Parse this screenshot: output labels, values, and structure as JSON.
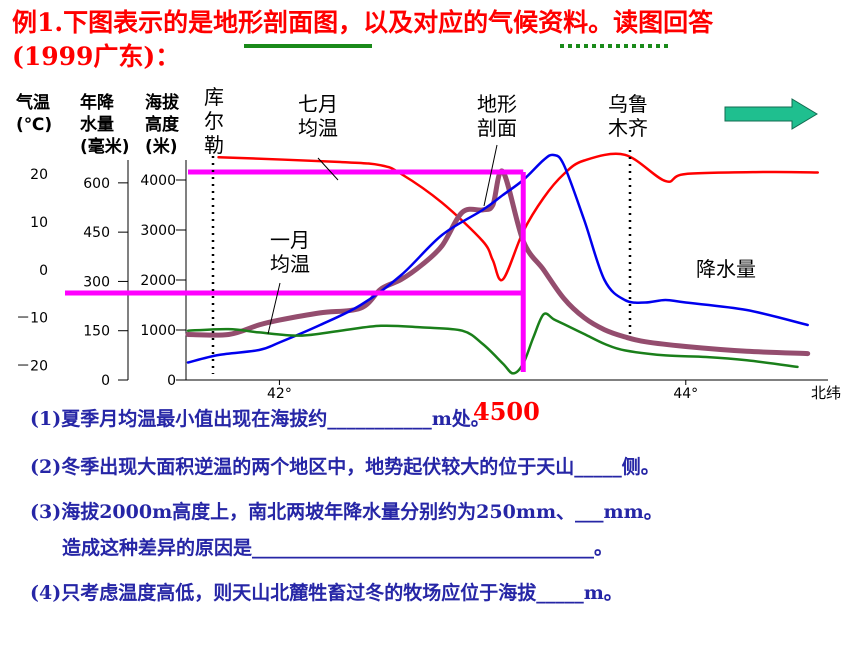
{
  "title": {
    "line1": "例1.下图表示的是地形剖面图，以及对应的气候资料。读图回答",
    "line2": "(1999广东)："
  },
  "chart_data": {
    "type": "line",
    "xlabel": "北纬",
    "xlim": [
      41.55,
      44.7
    ],
    "x_ticks": [
      {
        "value": 42,
        "label": "42°"
      },
      {
        "value": 44,
        "label": "44°"
      }
    ],
    "axes": [
      {
        "name": "temperature",
        "label": [
          "气温",
          "(℃)"
        ],
        "ticks": [
          "20",
          "10",
          "0",
          "－10",
          "－20"
        ],
        "tick_values": [
          20,
          10,
          0,
          -10,
          -20
        ],
        "range": [
          -23,
          25
        ]
      },
      {
        "name": "precipitation",
        "label": [
          "年降",
          "水量",
          "(毫米)"
        ],
        "ticks": [
          "600",
          "450",
          "300",
          "150",
          "0"
        ],
        "tick_values": [
          600,
          450,
          300,
          150,
          0
        ],
        "range": [
          0,
          700
        ]
      },
      {
        "name": "elevation",
        "label": [
          "海拔",
          "高度",
          "(米)"
        ],
        "ticks": [
          "4000",
          "3000",
          "2000",
          "1000",
          "0"
        ],
        "tick_values": [
          4000,
          3000,
          2000,
          1000,
          0
        ],
        "range": [
          0,
          4600
        ]
      }
    ],
    "annotations": [
      {
        "text": [
          "库",
          "尔",
          "勒"
        ]
      },
      {
        "text": [
          "七月",
          "均温"
        ]
      },
      {
        "text": [
          "地形",
          "剖面"
        ]
      },
      {
        "text": [
          "乌鲁",
          "木齐"
        ]
      },
      {
        "text": [
          "一月",
          "均温"
        ]
      },
      {
        "text": [
          "降水量"
        ]
      }
    ],
    "series": [
      {
        "key": "july",
        "color": "#ff0000",
        "axis": "temperature",
        "x": [
          41.7,
          42.3,
          42.5,
          42.6,
          42.8,
          43.0,
          43.05,
          43.1,
          43.2,
          43.3,
          43.4,
          43.5,
          43.7,
          43.9,
          44.0,
          44.4,
          44.65
        ],
        "y": [
          23.5,
          22.5,
          21.8,
          20,
          14,
          6,
          2,
          -2,
          8,
          15,
          20,
          22.8,
          24,
          18.5,
          20,
          20.4,
          20.3
        ]
      },
      {
        "key": "january",
        "color": "#944d6e",
        "axis": "temperature",
        "x": [
          41.55,
          41.75,
          41.9,
          42.0,
          42.2,
          42.4,
          42.5,
          42.6,
          42.7,
          42.8,
          42.9,
          43.0,
          43.05,
          43.1,
          43.2,
          43.3,
          43.4,
          43.5,
          43.6,
          43.7,
          43.8,
          44.0,
          44.3,
          44.6
        ],
        "y": [
          -13.5,
          -13.5,
          -11.5,
          -10.5,
          -9,
          -8,
          -4,
          -2,
          1,
          5,
          12,
          12.5,
          13.5,
          20.5,
          6,
          0,
          -6,
          -10,
          -12.5,
          -14,
          -15,
          -16,
          -17,
          -17.5
        ]
      },
      {
        "key": "terrain",
        "color": "#0000ee",
        "axis": "elevation",
        "x": [
          41.55,
          41.7,
          41.9,
          42.0,
          42.2,
          42.4,
          42.6,
          42.8,
          43.0,
          43.1,
          43.2,
          43.3,
          43.35,
          43.4,
          43.5,
          43.6,
          43.7,
          43.8,
          43.9,
          44.0,
          44.3,
          44.6
        ],
        "y": [
          350,
          500,
          600,
          750,
          1100,
          1500,
          2100,
          2900,
          3400,
          3700,
          4000,
          4400,
          4500,
          4300,
          3200,
          2000,
          1600,
          1550,
          1600,
          1550,
          1400,
          1100
        ]
      },
      {
        "key": "precipitation",
        "color": "#1a7f1a",
        "axis": "precipitation",
        "x": [
          41.55,
          41.75,
          41.9,
          42.1,
          42.3,
          42.5,
          42.7,
          42.9,
          43.0,
          43.1,
          43.15,
          43.2,
          43.25,
          43.3,
          43.35,
          43.4,
          43.5,
          43.6,
          43.7,
          43.9,
          44.1,
          44.3,
          44.55
        ],
        "y": [
          150,
          155,
          145,
          135,
          150,
          165,
          160,
          150,
          110,
          50,
          20,
          50,
          130,
          200,
          185,
          170,
          140,
          110,
          90,
          75,
          70,
          60,
          40
        ]
      }
    ]
  },
  "questions": [
    "(1)夏季月均温最小值出现在海拔约___________m处。",
    "(2)冬季出现大面积逆温的两个地区中，地势起伏较大的位于天山_____侧。",
    "(3)海拔2000m高度上，南北两坡年降水量分别约为250mm、___mm。",
    "造成这种差异的原因是____________________________________。",
    "(4)只考虑温度高低，则天山北麓牲畜过冬的牧场应位于海拔_____m。"
  ],
  "answer": "4500",
  "colors": {
    "highlight": "#ff00ff",
    "underline_green": "#1a8a1a",
    "arrow": "#1fbf8f",
    "question_text": "#2626a6"
  }
}
